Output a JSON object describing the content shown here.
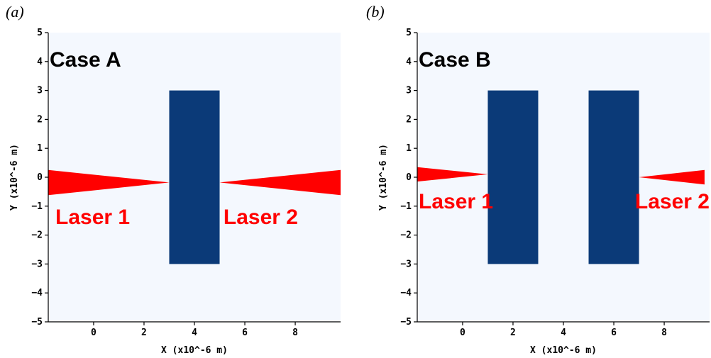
{
  "colors": {
    "plot_background": "#f4f8fe",
    "target": "#0b3a78",
    "laser": "#ff0000"
  },
  "panels": [
    {
      "letter": "(a)",
      "case_label": "Case A",
      "xlabel": "X (x10^-6 m)",
      "ylabel": "Y (x10^-6 m)",
      "x_range": [
        -1.8,
        9.8
      ],
      "y_range": [
        -5,
        5
      ],
      "x_ticks": [
        0,
        2,
        4,
        6,
        8
      ],
      "y_ticks": [
        -5,
        -4,
        -3,
        -2,
        -1,
        0,
        1,
        2,
        3,
        4,
        5
      ],
      "targets": [
        {
          "x0": 3,
          "x1": 5,
          "y0": -3,
          "y1": 3
        }
      ],
      "lasers": [
        {
          "label": "Laser 1",
          "side": "left",
          "base_x": -1.8,
          "base_y0": -0.62,
          "base_y1": 0.25,
          "tip_x": 3.0,
          "tip_y": -0.18
        },
        {
          "label": "Laser 2",
          "side": "right",
          "base_x": 9.8,
          "base_y0": -0.62,
          "base_y1": 0.25,
          "tip_x": 5.0,
          "tip_y": -0.18
        }
      ]
    },
    {
      "letter": "(b)",
      "case_label": "Case B",
      "xlabel": "X (x10^-6 m)",
      "ylabel": "Y (x10^-6 m)",
      "x_range": [
        -1.8,
        9.8
      ],
      "y_range": [
        -5,
        5
      ],
      "x_ticks": [
        0,
        2,
        4,
        6,
        8
      ],
      "y_ticks": [
        -5,
        -4,
        -3,
        -2,
        -1,
        0,
        1,
        2,
        3,
        4,
        5
      ],
      "targets": [
        {
          "x0": 1,
          "x1": 3,
          "y0": -3,
          "y1": 3
        },
        {
          "x0": 5,
          "x1": 7,
          "y0": -3,
          "y1": 3
        }
      ],
      "lasers": [
        {
          "label": "Laser 1",
          "side": "left",
          "base_x": -1.8,
          "base_y0": -0.15,
          "base_y1": 0.35,
          "tip_x": 1.0,
          "tip_y": 0.1
        },
        {
          "label": "Laser 2",
          "side": "right",
          "base_x": 9.6,
          "base_y0": -0.25,
          "base_y1": 0.25,
          "tip_x": 7.0,
          "tip_y": 0.0
        }
      ]
    }
  ]
}
